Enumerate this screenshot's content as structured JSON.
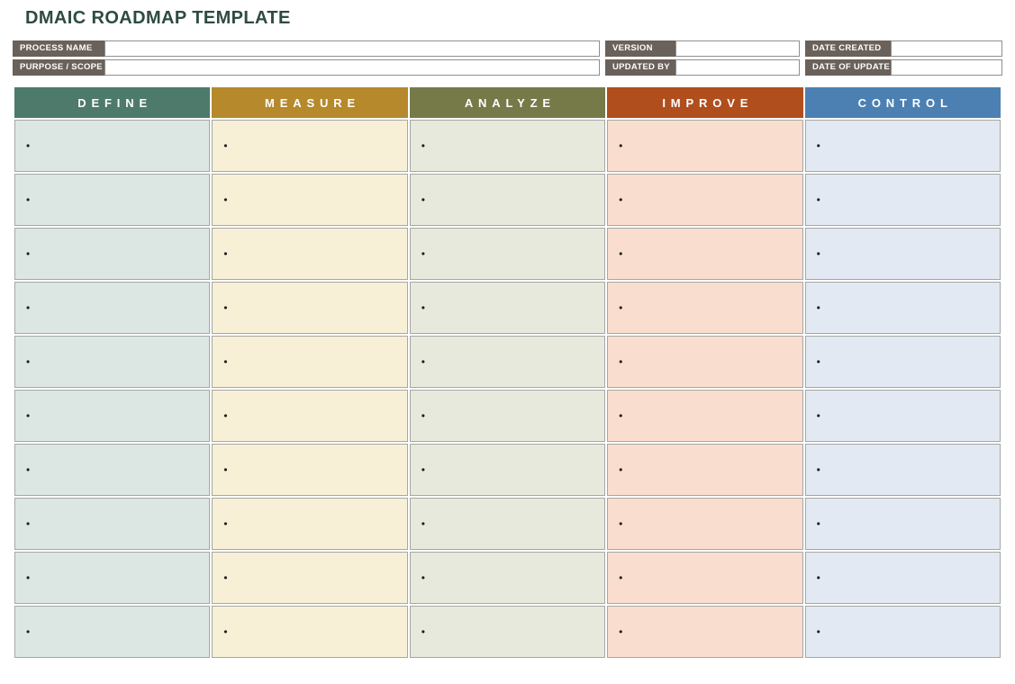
{
  "page": {
    "title": "DMAIC ROADMAP TEMPLATE",
    "title_color": "#2e4b42"
  },
  "meta": {
    "label_bg": "#6a615a",
    "label_text_color": "#ffffff",
    "rows": [
      {
        "fields": [
          {
            "label": "PROCESS NAME",
            "value": ""
          },
          {
            "label": "VERSION",
            "value": ""
          },
          {
            "label": "DATE CREATED",
            "value": ""
          }
        ]
      },
      {
        "fields": [
          {
            "label": "PURPOSE / SCOPE",
            "value": ""
          },
          {
            "label": "UPDATED BY",
            "value": ""
          },
          {
            "label": "DATE OF UPDATE",
            "value": ""
          }
        ]
      }
    ]
  },
  "table": {
    "columns": [
      {
        "label": "DEFINE",
        "header_color": "#4e7a6c",
        "body_color": "#dce7e3"
      },
      {
        "label": "MEASURE",
        "header_color": "#b5892c",
        "body_color": "#f7efd6"
      },
      {
        "label": "ANALYZE",
        "header_color": "#767a49",
        "body_color": "#e7e9dd"
      },
      {
        "label": "IMPROVE",
        "header_color": "#b04e1e",
        "body_color": "#f9ddcf"
      },
      {
        "label": "CONTROL",
        "header_color": "#4c80b2",
        "body_color": "#e3e9f2"
      }
    ],
    "row_count": 10,
    "bullet": "•",
    "grid_border_color": "#a5a8a4",
    "header_text_color": "#ffffff"
  }
}
